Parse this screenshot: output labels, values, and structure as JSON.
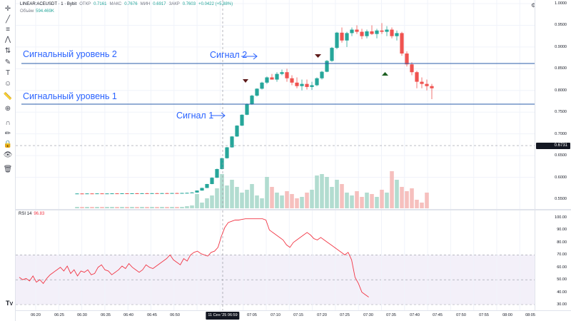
{
  "legend": {
    "symbol": "LINEAR:ACEUSDT · 1 · Bybit",
    "open_label": "ОТКР",
    "open": "0.7161",
    "high_label": "МАКС",
    "high": "0.7676",
    "low_label": "МИН",
    "low": "0.6917",
    "close_label": "ЗАКР",
    "close": "0.7603",
    "change": "+0.0422 (+5.88%)",
    "volume_label": "Объём",
    "volume": "594.469K"
  },
  "annotations": {
    "level2": "Сигнальный уровень 2",
    "level1": "Сигнальный уровень 1",
    "signal2": "Сигнал 2",
    "signal1": "Сигнал 1"
  },
  "rsi": {
    "label": "RSI 14",
    "value": "96.83"
  },
  "price_scale": {
    "labels": [
      "1.0000",
      "0.9500",
      "0.9000",
      "0.8500",
      "0.8000",
      "0.7500",
      "0.7000",
      "0.6500",
      "0.6000",
      "0.5500"
    ],
    "current_price": "0.6731"
  },
  "rsi_scale": {
    "labels": [
      "100.00",
      "90.00",
      "80.00",
      "70.00",
      "60.00",
      "50.00",
      "40.00",
      "30.00"
    ]
  },
  "time_axis": {
    "labels": [
      "06:20",
      "06:25",
      "06:30",
      "06:35",
      "06:40",
      "06:45",
      "06:50",
      "07:05",
      "07:10",
      "07:15",
      "07:20",
      "07:25",
      "07:30",
      "07:35",
      "07:40",
      "07:45",
      "07:50",
      "07:55",
      "08:00",
      "08:05"
    ],
    "crosshair": "11 Сен '25   06:59"
  },
  "toolbar": {
    "icons": [
      "crosshair-icon",
      "trendline-icon",
      "fib-icon",
      "pattern-icon",
      "projection-icon",
      "brush-icon",
      "text-icon",
      "emoji-icon",
      "ruler-icon",
      "zoom-icon",
      "magnet-icon",
      "lock-drawing-icon",
      "lock-icon",
      "eye-icon",
      "trash-icon"
    ],
    "glyphs": [
      "✛",
      "╱",
      "≡",
      "⋀",
      "⇅",
      "✎",
      "T",
      "☺",
      "📏",
      "⊕",
      "∩",
      "✏",
      "🔒",
      "👁",
      "🗑"
    ]
  },
  "colors": {
    "up": "#26a69a",
    "down": "#ef5350",
    "level": "#2a5caa",
    "annotation": "#2962ff",
    "rsi": "#f23645",
    "rsi_band": "#7e57c2"
  }
}
